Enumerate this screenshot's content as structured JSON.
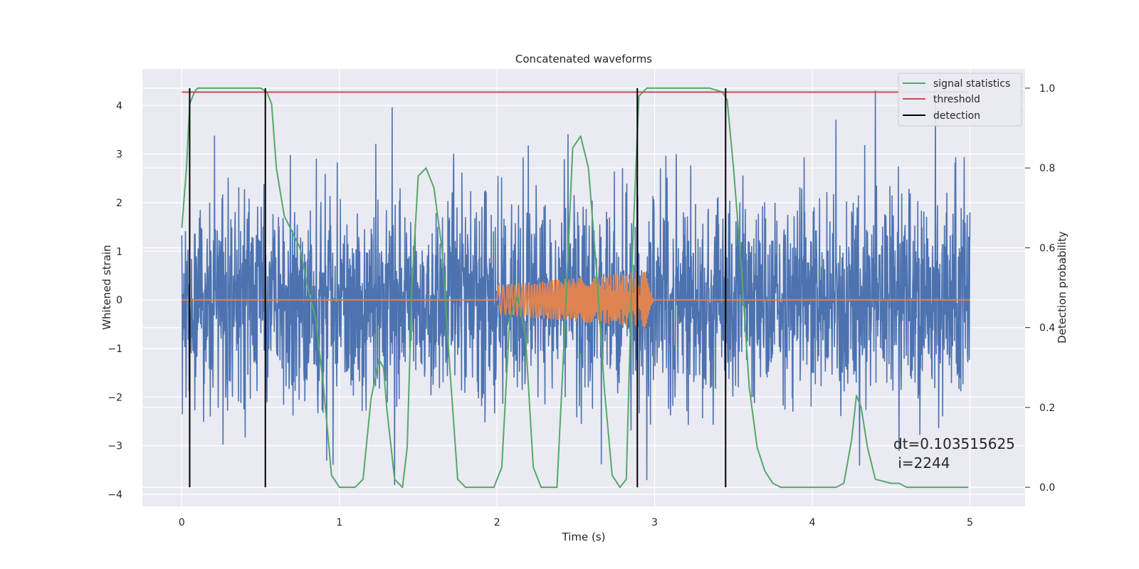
{
  "chart_data": {
    "type": "line",
    "title": "Concatenated waveforms",
    "xlabel": "Time (s)",
    "ylabel": "Whitened strain",
    "y2label": "Detection probability",
    "xlim": [
      -0.25,
      5.35
    ],
    "ylim": [
      -4.25,
      4.75
    ],
    "y2lim": [
      -0.048,
      1.048
    ],
    "xticks": [
      0,
      1,
      2,
      3,
      4,
      5
    ],
    "xtick_labels": [
      "0",
      "1",
      "2",
      "3",
      "4",
      "5"
    ],
    "yticks": [
      4,
      3,
      2,
      1,
      0,
      -1,
      -2,
      -3,
      -4
    ],
    "ytick_labels": [
      "4",
      "3",
      "2",
      "1",
      "0",
      "−1",
      "−2",
      "−3",
      "−4"
    ],
    "y2ticks": [
      1.0,
      0.8,
      0.6,
      0.4,
      0.2,
      0.0
    ],
    "y2tick_labels": [
      "1.0",
      "0.8",
      "0.6",
      "0.4",
      "0.2",
      "0.0"
    ],
    "grid": true,
    "legend_position": "top-right",
    "strain_noise": {
      "color": "#4c72b0",
      "x_range": [
        0,
        5
      ],
      "approx_abs_max": 4.3,
      "description_points": [
        [
          0.05,
          -2.6
        ],
        [
          0.54,
          -2.1
        ],
        [
          0.92,
          -3.3
        ],
        [
          1.23,
          3.2
        ],
        [
          1.35,
          -3.8
        ],
        [
          2.45,
          3.4
        ],
        [
          2.95,
          -3.7
        ],
        [
          4.15,
          3.7
        ],
        [
          4.4,
          4.3
        ],
        [
          4.3,
          -3.4
        ],
        [
          4.55,
          -3.1
        ],
        [
          5.0,
          1.8
        ]
      ]
    },
    "injected_waveform": {
      "color": "#dd8452",
      "x": [
        0,
        2.0,
        2.0,
        3.0,
        3.0,
        5.0
      ],
      "envelope": [
        0,
        0.3,
        0.3,
        0.6,
        0,
        0
      ],
      "chirp_start": 2.0,
      "chirp_end": 3.0
    },
    "series": [
      {
        "name": "signal statistics",
        "color": "#55a868",
        "axis": "right",
        "x": [
          0,
          0.03,
          0.05,
          0.08,
          0.1,
          0.2,
          0.3,
          0.4,
          0.5,
          0.54,
          0.57,
          0.6,
          0.65,
          0.7,
          0.75,
          0.8,
          0.85,
          0.9,
          0.95,
          1.0,
          1.05,
          1.1,
          1.15,
          1.2,
          1.25,
          1.28,
          1.3,
          1.35,
          1.4,
          1.43,
          1.46,
          1.5,
          1.55,
          1.6,
          1.65,
          1.7,
          1.75,
          1.8,
          1.9,
          1.98,
          2.03,
          2.08,
          2.13,
          2.18,
          2.23,
          2.28,
          2.33,
          2.38,
          2.43,
          2.48,
          2.53,
          2.58,
          2.63,
          2.68,
          2.73,
          2.78,
          2.82,
          2.86,
          2.9,
          2.95,
          3.05,
          3.2,
          3.35,
          3.43,
          3.46,
          3.5,
          3.55,
          3.6,
          3.65,
          3.7,
          3.75,
          3.8,
          3.9,
          4.05,
          4.15,
          4.2,
          4.25,
          4.28,
          4.31,
          4.35,
          4.4,
          4.5,
          4.55,
          4.6,
          4.7,
          4.8,
          4.99
        ],
        "values": [
          0.65,
          0.8,
          0.96,
          0.99,
          1.0,
          1.0,
          1.0,
          1.0,
          1.0,
          0.99,
          0.96,
          0.8,
          0.68,
          0.64,
          0.6,
          0.5,
          0.42,
          0.25,
          0.03,
          0.0,
          0.0,
          0.0,
          0.02,
          0.22,
          0.32,
          0.3,
          0.2,
          0.02,
          0.0,
          0.1,
          0.5,
          0.78,
          0.8,
          0.75,
          0.6,
          0.3,
          0.02,
          0.0,
          0.0,
          0.0,
          0.05,
          0.42,
          0.48,
          0.38,
          0.05,
          0.0,
          0.0,
          0.0,
          0.4,
          0.85,
          0.88,
          0.8,
          0.55,
          0.25,
          0.03,
          0.0,
          0.02,
          0.6,
          0.98,
          1.0,
          1.0,
          1.0,
          1.0,
          0.99,
          0.97,
          0.8,
          0.55,
          0.25,
          0.1,
          0.04,
          0.01,
          0.0,
          0.0,
          0.0,
          0.0,
          0.01,
          0.12,
          0.23,
          0.2,
          0.1,
          0.02,
          0.01,
          0.01,
          0.0,
          0.0,
          0.0,
          0.0
        ]
      },
      {
        "name": "threshold",
        "color": "#c44e52",
        "axis": "right",
        "x": [
          0,
          4.99
        ],
        "values": [
          0.99,
          0.99
        ]
      },
      {
        "name": "detection",
        "color": "#000000",
        "axis": "right",
        "vlines": [
          0.05,
          0.53,
          2.89,
          3.45
        ],
        "ymin": 0.0,
        "ymax": 1.0
      }
    ],
    "annotation": {
      "line1": "dt=0.103515625",
      "line2": " i=2244"
    }
  }
}
